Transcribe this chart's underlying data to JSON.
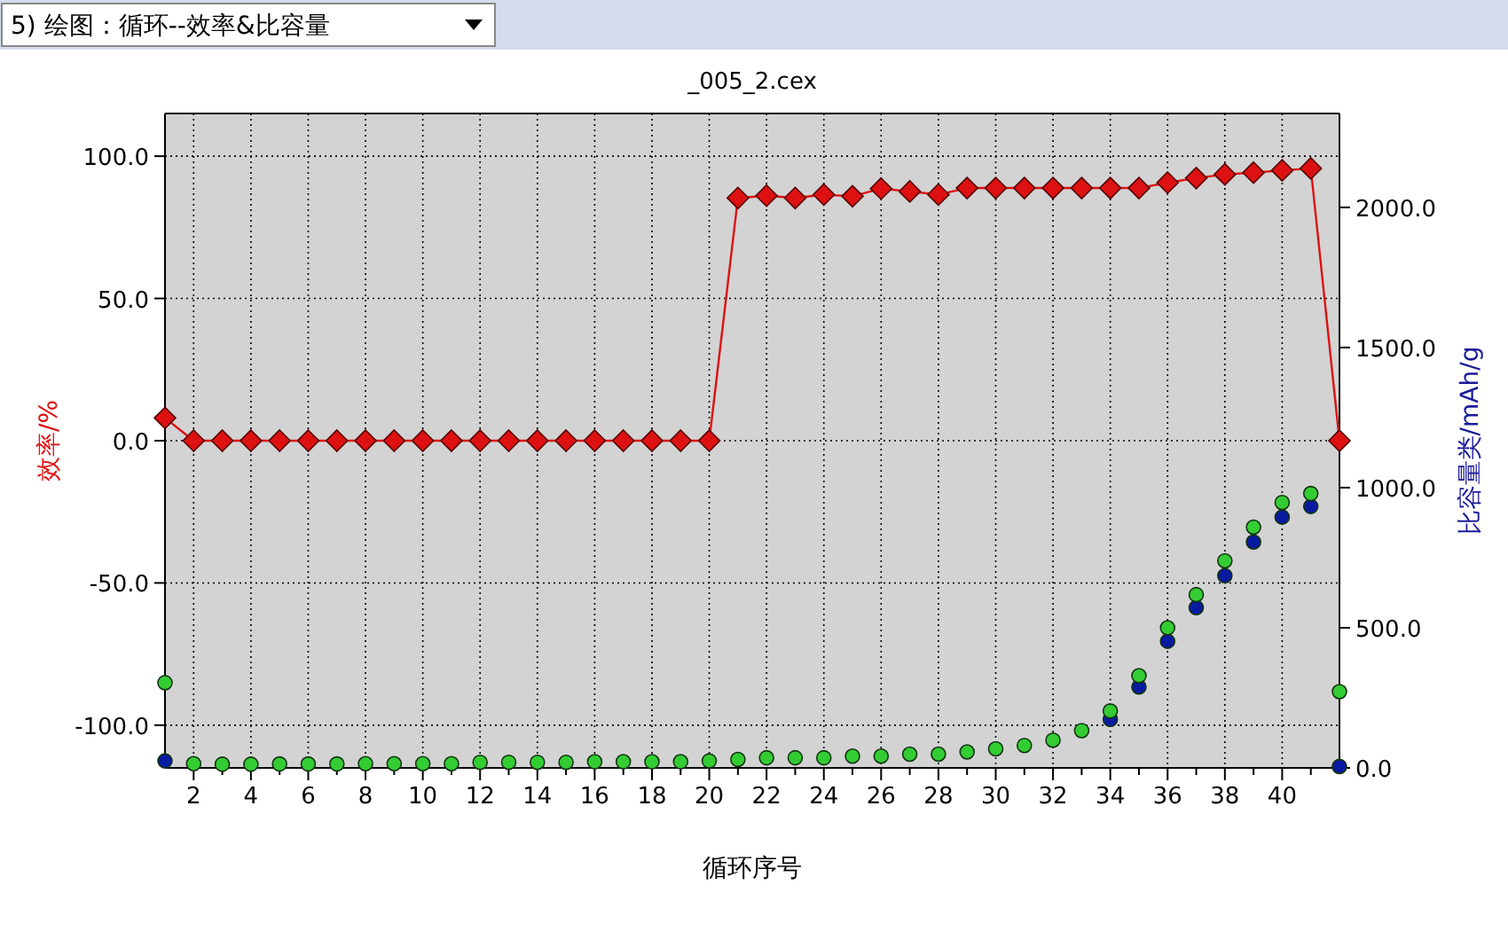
{
  "chart_data": {
    "type": "line",
    "title": "_005_2.cex",
    "xlabel": "循环序号",
    "ylabel": "效率/%",
    "y2label": "比容量类/mAh/g",
    "annotations": [
      "5) 绘图：循环--效率&比容量"
    ],
    "x": [
      1,
      2,
      3,
      4,
      5,
      6,
      7,
      8,
      9,
      10,
      11,
      12,
      13,
      14,
      15,
      16,
      17,
      18,
      19,
      20,
      21,
      22,
      23,
      24,
      25,
      26,
      27,
      28,
      29,
      30,
      31,
      32,
      33,
      34,
      35,
      36,
      37,
      38,
      39,
      40,
      41,
      42
    ],
    "series": [
      {
        "marker": "diamond",
        "color": "#dd1111",
        "values": [
          8,
          0,
          0,
          0,
          0,
          0,
          0,
          0,
          0,
          0,
          0,
          0,
          0,
          0,
          0,
          0,
          0,
          0,
          0,
          0,
          85.3,
          86.1,
          85.3,
          86.5,
          85.9,
          88.6,
          87.6,
          86.5,
          88.8,
          88.8,
          88.8,
          88.8,
          88.8,
          88.8,
          88.8,
          90.7,
          92.3,
          93.6,
          94.2,
          95.0,
          95.7,
          0
        ]
      },
      {
        "type": "scatter",
        "axis": "y2",
        "marker": "circle",
        "color": "#0a1aa0",
        "values": [
          25,
          null,
          null,
          null,
          null,
          null,
          null,
          null,
          null,
          null,
          null,
          null,
          null,
          null,
          null,
          null,
          null,
          null,
          null,
          null,
          null,
          null,
          null,
          null,
          null,
          null,
          null,
          null,
          null,
          null,
          null,
          null,
          null,
          173,
          289,
          452,
          572,
          686,
          806,
          895,
          933,
          5
        ]
      },
      {
        "type": "scatter",
        "axis": "y2",
        "marker": "circle",
        "color": "#33cc33",
        "values": [
          304,
          15,
          13,
          13,
          14,
          14,
          14,
          15,
          15,
          15,
          15,
          20,
          20,
          20,
          20,
          22,
          22,
          22,
          22,
          25,
          30,
          36,
          36,
          36,
          42,
          42,
          49,
          49,
          57,
          68,
          80,
          99,
          133,
          203,
          329,
          500,
          618,
          739,
          859,
          947,
          979,
          272
        ]
      }
    ],
    "xlim": [
      1,
      42
    ],
    "xticks": [
      {
        "value": 2,
        "label": "2"
      },
      {
        "value": 3,
        "label": null
      },
      {
        "value": 4,
        "label": "4"
      },
      {
        "value": 5,
        "label": null
      },
      {
        "value": 6,
        "label": "6"
      },
      {
        "value": 7,
        "label": null
      },
      {
        "value": 8,
        "label": "8"
      },
      {
        "value": 9,
        "label": null
      },
      {
        "value": 10,
        "label": "10"
      },
      {
        "value": 11,
        "label": null
      },
      {
        "value": 12,
        "label": "12"
      },
      {
        "value": 13,
        "label": null
      },
      {
        "value": 14,
        "label": "14"
      },
      {
        "value": 15,
        "label": null
      },
      {
        "value": 16,
        "label": "16"
      },
      {
        "value": 17,
        "label": null
      },
      {
        "value": 18,
        "label": "18"
      },
      {
        "value": 19,
        "label": null
      },
      {
        "value": 20,
        "label": "20"
      },
      {
        "value": 21,
        "label": null
      },
      {
        "value": 22,
        "label": "22"
      },
      {
        "value": 23,
        "label": null
      },
      {
        "value": 24,
        "label": "24"
      },
      {
        "value": 25,
        "label": null
      },
      {
        "value": 26,
        "label": "26"
      },
      {
        "value": 27,
        "label": null
      },
      {
        "value": 28,
        "label": "28"
      },
      {
        "value": 29,
        "label": null
      },
      {
        "value": 30,
        "label": "30"
      },
      {
        "value": 31,
        "label": null
      },
      {
        "value": 32,
        "label": "32"
      },
      {
        "value": 33,
        "label": null
      },
      {
        "value": 34,
        "label": "34"
      },
      {
        "value": 35,
        "label": null
      },
      {
        "value": 36,
        "label": "36"
      },
      {
        "value": 37,
        "label": null
      },
      {
        "value": 38,
        "label": "38"
      },
      {
        "value": 39,
        "label": null
      },
      {
        "value": 40,
        "label": "40"
      },
      {
        "value": 41,
        "label": null
      }
    ],
    "ylim": [
      -115,
      115
    ],
    "yticks": [
      {
        "value": -100,
        "label": "-100.0"
      },
      {
        "value": -50,
        "label": "-50.0"
      },
      {
        "value": 0,
        "label": "0.0"
      },
      {
        "value": 50,
        "label": "50.0"
      },
      {
        "value": 100,
        "label": "100.0"
      }
    ],
    "y2lim": [
      0,
      2335
    ],
    "y2ticks": [
      {
        "value": 0,
        "label": "0.0"
      },
      {
        "value": 500,
        "label": "500.0"
      },
      {
        "value": 1000,
        "label": "1000.0"
      },
      {
        "value": 1500,
        "label": "1500.0"
      },
      {
        "value": 2000,
        "label": "2000.0"
      }
    ],
    "grid": true,
    "line_style": "solid"
  }
}
